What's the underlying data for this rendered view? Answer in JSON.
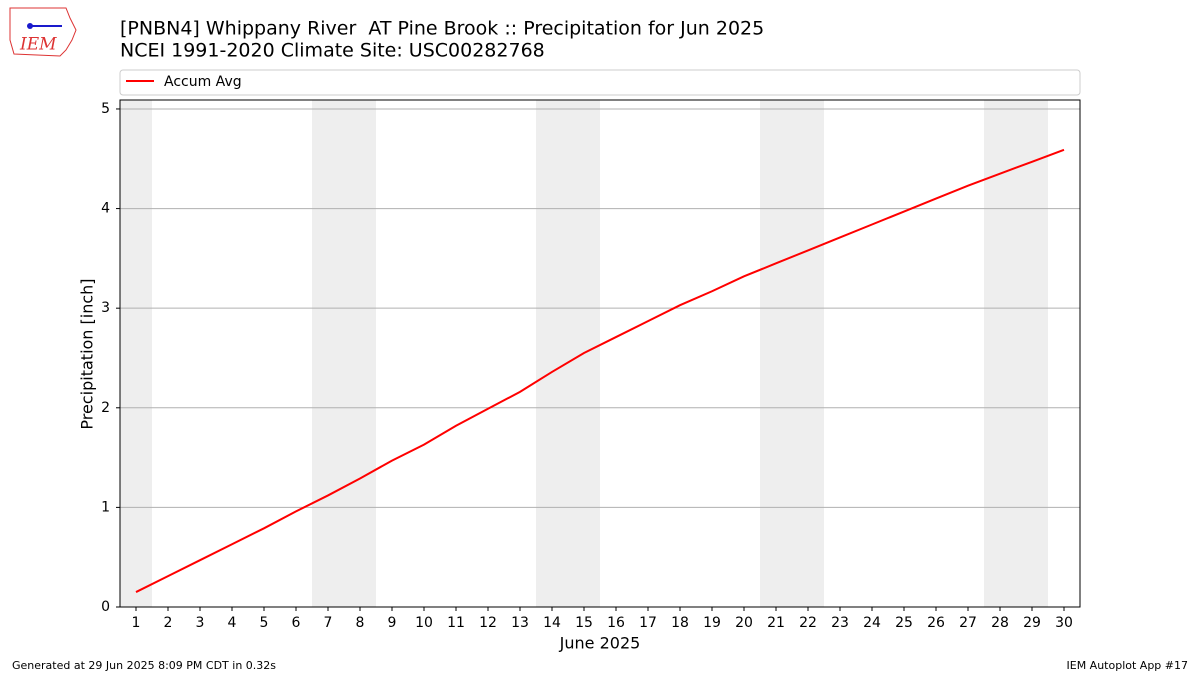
{
  "logo_text": "IEM",
  "chart_data": {
    "type": "line",
    "title": "[PNBN4] Whippany River  AT Pine Brook :: Precipitation for Jun 2025",
    "subtitle": "NCEI 1991-2020 Climate Site: USC00282768",
    "x_label": "June 2025",
    "y_label": "Precipitation [inch]",
    "x": [
      1,
      2,
      3,
      4,
      5,
      6,
      7,
      8,
      9,
      10,
      11,
      12,
      13,
      14,
      15,
      16,
      17,
      18,
      19,
      20,
      21,
      22,
      23,
      24,
      25,
      26,
      27,
      28,
      29,
      30
    ],
    "series": [
      {
        "name": "Accum Avg",
        "color": "#ff0000",
        "values": [
          0.15,
          0.31,
          0.47,
          0.63,
          0.79,
          0.96,
          1.12,
          1.29,
          1.47,
          1.63,
          1.82,
          1.99,
          2.16,
          2.36,
          2.55,
          2.71,
          2.87,
          3.03,
          3.17,
          3.32,
          3.45,
          3.58,
          3.71,
          3.84,
          3.97,
          4.1,
          4.23,
          4.35,
          4.47,
          4.59
        ]
      }
    ],
    "xlim": [
      0.5,
      30.5
    ],
    "ylim": [
      0,
      5.09
    ],
    "xticks": [
      1,
      2,
      3,
      4,
      5,
      6,
      7,
      8,
      9,
      10,
      11,
      12,
      13,
      14,
      15,
      16,
      17,
      18,
      19,
      20,
      21,
      22,
      23,
      24,
      25,
      26,
      27,
      28,
      29,
      30
    ],
    "yticks": [
      0,
      1,
      2,
      3,
      4,
      5
    ],
    "grid": true,
    "shaded_spans": [
      [
        0.5,
        1.5
      ],
      [
        6.5,
        8.5
      ],
      [
        13.5,
        15.5
      ],
      [
        20.5,
        22.5
      ],
      [
        27.5,
        29.5
      ]
    ],
    "shade_color": "#eeeeee",
    "legend": "top"
  },
  "footer": {
    "left": "Generated at 29 Jun 2025 8:09 PM CDT in 0.32s",
    "right": "IEM Autoplot App #17"
  }
}
